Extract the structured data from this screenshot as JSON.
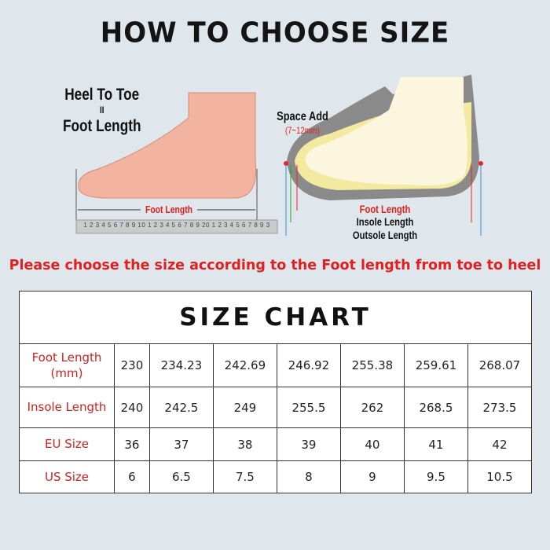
{
  "title": "HOW TO CHOOSE SIZE",
  "left_illustration": {
    "heading_line1": "Heel To Toe",
    "equals": "II",
    "heading_line2": "Foot Length",
    "measure_label": "Foot Length",
    "ruler_digits": "1 2 3 4 5 6 7 8 9 10 1 2 3 4 5 6 7 8 9 20 1 2 3 4 5 6 7 8 9 3"
  },
  "right_illustration": {
    "space_add": "Space Add",
    "space_range": "(7~12mm)",
    "foot_length": "Foot Length",
    "insole_length": "Insole Length",
    "outsole_length": "Outsole Length"
  },
  "notice": "Please  choose the size according to the Foot length from toe to heel",
  "size_chart": {
    "title": "SIZE CHART",
    "rows": [
      {
        "label": "Foot Length (mm)",
        "values": [
          "230",
          "234.23",
          "242.69",
          "246.92",
          "255.38",
          "259.61",
          "268.07"
        ]
      },
      {
        "label": "Insole Length",
        "values": [
          "240",
          "242.5",
          "249",
          "255.5",
          "262",
          "268.5",
          "273.5"
        ]
      },
      {
        "label": "EU Size",
        "values": [
          "36",
          "37",
          "38",
          "39",
          "40",
          "41",
          "42"
        ]
      },
      {
        "label": "US Size",
        "values": [
          "6",
          "6.5",
          "7.5",
          "8",
          "9",
          "9.5",
          "10.5"
        ]
      }
    ]
  },
  "colors": {
    "accent_red": "#e02020",
    "background": "#dfe7ec"
  }
}
